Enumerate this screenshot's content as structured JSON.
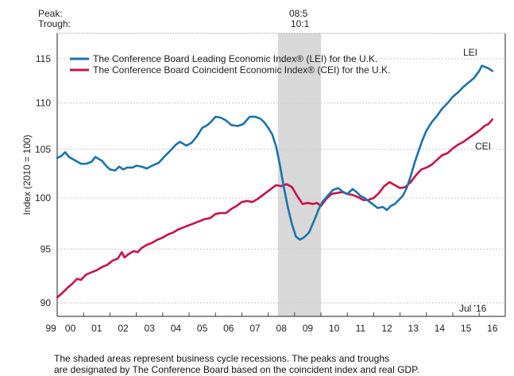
{
  "header": {
    "peak_label": "Peak:",
    "trough_label": "Trough:",
    "recession_peak": "08:5",
    "recession_trough": "10:1"
  },
  "footer": {
    "line1": "The shaded areas represent business cycle recessions. The peaks and troughs",
    "line2": "are designated by The Conference Board based on the coincident index and real GDP."
  },
  "chart_data": {
    "type": "line",
    "title": "",
    "xlabel": "",
    "ylabel": "Index (2010 = 100)",
    "yscale": "log",
    "ylim": [
      88.5,
      117.5
    ],
    "xlim": [
      2000.0,
      2016.95
    ],
    "yticks": [
      90,
      95,
      100,
      105,
      110,
      115
    ],
    "ytick_labels": [
      "90",
      "95",
      "100",
      "105",
      "110",
      "115"
    ],
    "xtick_labels": [
      "99",
      "00",
      "01",
      "02",
      "03",
      "04",
      "05",
      "06",
      "07",
      "08",
      "09",
      "10",
      "11",
      "12",
      "13",
      "14",
      "15",
      "16"
    ],
    "grid": true,
    "legend_position": "top-left",
    "annotation": "Jul '16",
    "recessions": [
      {
        "start": 2008.37,
        "end": 2010.0,
        "peak": "08:5",
        "trough": "10:1"
      }
    ],
    "colors": {
      "LEI": "#1a72ad",
      "CEI": "#c81048",
      "recession": "#d8d8d8"
    },
    "series": [
      {
        "name": "The Conference Board Leading Economic Index® (LEI) for the U.K.",
        "short": "LEI",
        "x": [
          2000.0,
          2000.15,
          2000.3,
          2000.45,
          2000.7,
          2000.9,
          2001.1,
          2001.3,
          2001.45,
          2001.7,
          2001.85,
          2002.0,
          2002.2,
          2002.35,
          2002.5,
          2002.65,
          2002.85,
          2003.0,
          2003.2,
          2003.4,
          2003.6,
          2003.85,
          2004.05,
          2004.3,
          2004.5,
          2004.65,
          2004.9,
          2005.1,
          2005.3,
          2005.5,
          2005.7,
          2005.85,
          2006.0,
          2006.2,
          2006.4,
          2006.6,
          2006.85,
          2007.05,
          2007.3,
          2007.5,
          2007.7,
          2007.85,
          2008.0,
          2008.15,
          2008.3,
          2008.45,
          2008.6,
          2008.75,
          2008.9,
          2009.05,
          2009.2,
          2009.35,
          2009.55,
          2009.75,
          2009.9,
          2010.05,
          2010.25,
          2010.45,
          2010.65,
          2010.85,
          2011.0,
          2011.2,
          2011.35,
          2011.5,
          2011.65,
          2011.85,
          2012.0,
          2012.15,
          2012.35,
          2012.5,
          2012.65,
          2012.8,
          2012.95,
          2013.1,
          2013.25,
          2013.4,
          2013.55,
          2013.7,
          2013.85,
          2014.0,
          2014.2,
          2014.4,
          2014.6,
          2014.8,
          2015.0,
          2015.2,
          2015.4,
          2015.6,
          2015.8,
          2016.0,
          2016.1,
          2016.2,
          2016.35,
          2016.5
        ],
        "values": [
          104.1,
          104.3,
          104.7,
          104.2,
          103.8,
          103.5,
          103.5,
          103.7,
          104.2,
          103.8,
          103.3,
          102.9,
          102.8,
          103.2,
          102.9,
          103.1,
          103.1,
          103.3,
          103.2,
          103.0,
          103.3,
          103.6,
          104.2,
          104.9,
          105.5,
          105.8,
          105.4,
          105.7,
          106.4,
          107.3,
          107.6,
          108.0,
          108.5,
          108.4,
          108.1,
          107.6,
          107.5,
          107.7,
          108.5,
          108.5,
          108.3,
          107.9,
          107.3,
          106.6,
          105.3,
          103.3,
          101.0,
          99.0,
          97.4,
          96.2,
          95.9,
          96.1,
          96.6,
          97.8,
          98.8,
          99.6,
          100.2,
          100.8,
          101.0,
          100.6,
          100.4,
          100.9,
          100.6,
          100.2,
          100.0,
          99.6,
          99.3,
          99.0,
          99.1,
          98.8,
          99.2,
          99.4,
          99.8,
          100.2,
          101.0,
          102.2,
          103.6,
          104.8,
          106.0,
          107.0,
          107.9,
          108.6,
          109.4,
          110.0,
          110.7,
          111.2,
          111.8,
          112.3,
          112.8,
          113.6,
          114.2,
          114.1,
          113.9,
          113.6
        ]
      },
      {
        "name": "The Conference Board Coincident Economic Index® (CEI) for the U.K.",
        "short": "CEI",
        "x": [
          2000.0,
          2000.2,
          2000.4,
          2000.55,
          2000.75,
          2000.9,
          2001.1,
          2001.3,
          2001.5,
          2001.7,
          2001.9,
          2002.1,
          2002.3,
          2002.45,
          2002.55,
          2002.7,
          2002.9,
          2003.05,
          2003.2,
          2003.4,
          2003.6,
          2003.8,
          2004.0,
          2004.2,
          2004.4,
          2004.6,
          2004.8,
          2005.0,
          2005.2,
          2005.4,
          2005.6,
          2005.8,
          2006.0,
          2006.2,
          2006.4,
          2006.6,
          2006.8,
          2007.0,
          2007.2,
          2007.4,
          2007.6,
          2007.8,
          2008.0,
          2008.15,
          2008.3,
          2008.5,
          2008.7,
          2008.9,
          2009.1,
          2009.3,
          2009.5,
          2009.7,
          2009.85,
          2010.0,
          2010.2,
          2010.4,
          2010.6,
          2010.8,
          2011.0,
          2011.2,
          2011.4,
          2011.6,
          2011.8,
          2012.0,
          2012.2,
          2012.4,
          2012.6,
          2012.8,
          2013.0,
          2013.2,
          2013.4,
          2013.6,
          2013.8,
          2014.0,
          2014.2,
          2014.4,
          2014.6,
          2014.8,
          2015.0,
          2015.2,
          2015.4,
          2015.6,
          2015.8,
          2016.0,
          2016.2,
          2016.35,
          2016.5
        ],
        "values": [
          90.5,
          90.9,
          91.4,
          91.7,
          92.2,
          92.1,
          92.6,
          92.8,
          93.0,
          93.3,
          93.5,
          93.9,
          94.1,
          94.7,
          94.2,
          94.5,
          94.8,
          94.7,
          95.1,
          95.4,
          95.6,
          95.9,
          96.1,
          96.4,
          96.6,
          96.9,
          97.1,
          97.3,
          97.5,
          97.7,
          97.9,
          98.0,
          98.4,
          98.5,
          98.5,
          98.9,
          99.2,
          99.6,
          99.7,
          99.6,
          99.9,
          100.3,
          100.7,
          101.0,
          101.3,
          101.2,
          101.4,
          101.1,
          100.2,
          99.4,
          99.5,
          99.4,
          99.5,
          99.2,
          99.9,
          100.4,
          100.5,
          100.6,
          100.4,
          100.3,
          100.1,
          99.8,
          99.8,
          100.0,
          100.5,
          101.2,
          101.6,
          101.3,
          101.0,
          101.1,
          101.6,
          102.3,
          102.9,
          103.1,
          103.4,
          103.9,
          104.4,
          104.6,
          105.1,
          105.5,
          105.8,
          106.2,
          106.6,
          107.0,
          107.5,
          107.7,
          108.2
        ]
      }
    ]
  }
}
